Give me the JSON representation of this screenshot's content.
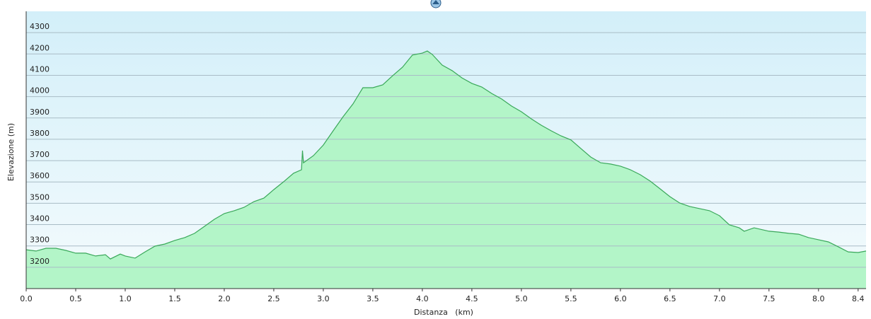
{
  "chart_data": {
    "type": "area",
    "x_label": "Distanza   (km)",
    "y_label": "Elevazione (m)",
    "x": [
      0,
      0.1,
      0.2,
      0.3,
      0.4,
      0.5,
      0.6,
      0.7,
      0.8,
      0.85,
      0.95,
      1.0,
      1.1,
      1.2,
      1.3,
      1.4,
      1.5,
      1.6,
      1.7,
      1.8,
      1.9,
      2.0,
      2.1,
      2.2,
      2.3,
      2.4,
      2.5,
      2.6,
      2.7,
      2.78,
      2.79,
      2.8,
      2.9,
      3.0,
      3.1,
      3.2,
      3.3,
      3.4,
      3.5,
      3.6,
      3.7,
      3.8,
      3.9,
      4.0,
      4.05,
      4.1,
      4.2,
      4.3,
      4.4,
      4.5,
      4.6,
      4.7,
      4.8,
      4.9,
      5.0,
      5.1,
      5.2,
      5.3,
      5.4,
      5.5,
      5.6,
      5.7,
      5.8,
      5.9,
      6.0,
      6.1,
      6.2,
      6.3,
      6.4,
      6.5,
      6.6,
      6.7,
      6.8,
      6.9,
      7.0,
      7.1,
      7.2,
      7.25,
      7.35,
      7.5,
      7.6,
      7.7,
      7.8,
      7.9,
      8.0,
      8.1,
      8.2,
      8.3,
      8.4,
      8.48
    ],
    "values": [
      3282,
      3276,
      3289,
      3289,
      3279,
      3266,
      3266,
      3253,
      3259,
      3239,
      3262,
      3253,
      3243,
      3272,
      3299,
      3309,
      3326,
      3339,
      3359,
      3392,
      3425,
      3452,
      3465,
      3481,
      3508,
      3524,
      3564,
      3601,
      3641,
      3657,
      3747,
      3690,
      3723,
      3773,
      3840,
      3906,
      3966,
      4042,
      4042,
      4055,
      4098,
      4138,
      4195,
      4204,
      4214,
      4198,
      4148,
      4122,
      4088,
      4062,
      4045,
      4015,
      3989,
      3956,
      3929,
      3896,
      3866,
      3840,
      3816,
      3797,
      3757,
      3717,
      3690,
      3684,
      3674,
      3657,
      3634,
      3604,
      3568,
      3531,
      3501,
      3485,
      3475,
      3465,
      3442,
      3399,
      3385,
      3369,
      3385,
      3369,
      3365,
      3359,
      3355,
      3339,
      3329,
      3319,
      3296,
      3272,
      3269,
      3276
    ],
    "color": "#3aa85a",
    "fill": "#b3f5c8",
    "xlim": [
      0,
      8.48
    ],
    "ylim": [
      3100,
      4400
    ],
    "xticks": [
      {
        "value": 0,
        "label": "0.0"
      },
      0.5,
      {
        "value": 1,
        "label": "1.0"
      },
      1.5,
      {
        "value": 2,
        "label": "2.0"
      },
      2.5,
      {
        "value": 3,
        "label": "3.0"
      },
      3.5,
      {
        "value": 4,
        "label": "4.0"
      },
      4.5,
      {
        "value": 5,
        "label": "5.0"
      },
      5.5,
      {
        "value": 6,
        "label": "6.0"
      },
      6.5,
      {
        "value": 7,
        "label": "7.0"
      },
      7.5,
      {
        "value": 8,
        "label": "8.0"
      },
      8.4
    ],
    "yticks": [
      3200,
      3300,
      3400,
      3500,
      3600,
      3700,
      3800,
      3900,
      4000,
      4100,
      4200,
      4300
    ],
    "grid": true
  }
}
